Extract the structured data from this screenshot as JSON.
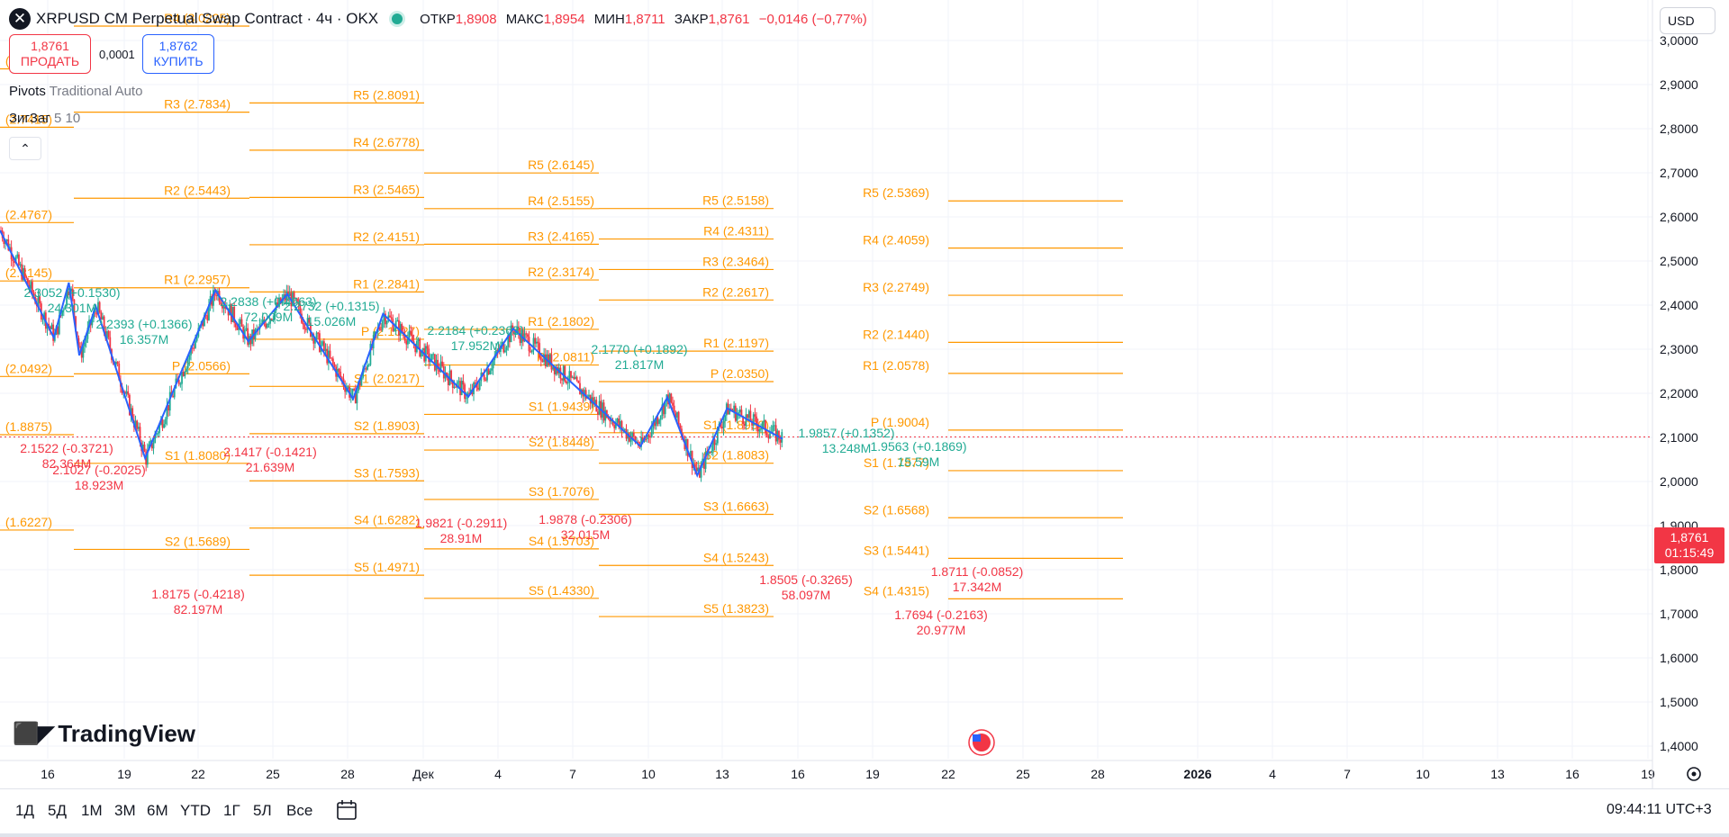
{
  "header": {
    "title": "XRPUSD CM Perpetual Swap Contract · 4ч · OKX",
    "ohlc": [
      {
        "k": "ОТКР",
        "v": "1,8908"
      },
      {
        "k": "МАКС",
        "v": "1,8954"
      },
      {
        "k": "МИН",
        "v": "1,8711"
      },
      {
        "k": "ЗАКР",
        "v": "1,8761"
      }
    ],
    "change": "−0,0146 (−0,77%)"
  },
  "trade": {
    "sell_price": "1,8761",
    "sell_label": "ПРОДАТЬ",
    "spread": "0,0001",
    "buy_price": "1,8762",
    "buy_label": "КУПИТЬ"
  },
  "indicators": [
    {
      "name": "Pivots",
      "params": "Traditional Auto"
    },
    {
      "name": "ЗигЗаг",
      "params": "5 10"
    }
  ],
  "currency": "USD",
  "last_price": {
    "value": "1,8761",
    "countdown": "01:15:49"
  },
  "logo_text": "TradingView",
  "ranges": [
    "1Д",
    "5Д",
    "1М",
    "3М",
    "6М",
    "YTD",
    "1Г",
    "5Л",
    "Все"
  ],
  "clock": "09:44:11 UTC+3",
  "colors": {
    "up": "#22ab94",
    "down": "#f23645",
    "pivot": "#ff9800",
    "zigzag": "#2962ff",
    "grid": "#f0f3fa"
  },
  "chart_data": {
    "type": "candlestick",
    "y_axis": {
      "ticks": [
        "3,0000",
        "2,9000",
        "2,8000",
        "2,7000",
        "2,6000",
        "2,5000",
        "2,4000",
        "2,3000",
        "2,2000",
        "2,1000",
        "2,0000",
        "1,9000",
        "1,8000",
        "1,7000",
        "1,6000",
        "1,5000",
        "1,4000"
      ],
      "range": [
        1.38,
        3.02
      ]
    },
    "x_axis": {
      "ticks": [
        "16",
        "19",
        "22",
        "25",
        "28",
        "Дек",
        "4",
        "7",
        "10",
        "13",
        "16",
        "19",
        "22",
        "25",
        "28",
        "2026",
        "4",
        "7",
        "10",
        "13",
        "16",
        "19"
      ]
    },
    "pivot_labels": [
      "R4 (3.0225)",
      "(2.9037)",
      "R3 (2.7834)",
      "(2.7415)",
      "R2 (2.5443)",
      "(2.4767)",
      "R1 (2.2957)",
      "(2.3145)",
      "P (2.0566)",
      "(2.0492)",
      "S1 (1.8080)",
      "(1.8875)",
      "S2 (1.5689)",
      "(1.6227)",
      "R5 (2.8091)",
      "R4 (2.6778)",
      "R3 (2.5465)",
      "R2 (2.4151)",
      "R1 (2.2841)",
      "P (2.1527)",
      "S1 (2.0217)",
      "S2 (1.8903)",
      "S3 (1.7593)",
      "S4 (1.6282)",
      "S5 (1.4971)",
      "R5 (2.6145)",
      "R4 (2.5155)",
      "R3 (2.4165)",
      "R2 (2.3174)",
      "R1 (2.1802)",
      "P (2.0811)",
      "S1 (1.9439)",
      "S2 (1.8448)",
      "S3 (1.7076)",
      "S4 (1.5703)",
      "S5 (1.4330)",
      "R5 (2.5158)",
      "R4 (2.4311)",
      "R3 (2.3464)",
      "R2 (2.2617)",
      "R1 (2.1197)",
      "P (2.0350)",
      "S1 (1.8930)",
      "S2 (1.8083)",
      "S3 (1.6663)",
      "S4 (1.5243)",
      "S5 (1.3823)",
      "R5 (2.5369)",
      "R4 (2.4059)",
      "R3 (2.2749)",
      "R2 (2.1440)",
      "R1 (2.0578)",
      "P (1.9004)",
      "S1 (1.7877)",
      "S2 (1.6568)",
      "S3 (1.5441)",
      "S4 (1.4315)"
    ],
    "zigzag_labels": [
      {
        "price": "2.3052 (+0.1530)",
        "vol": "24.301M",
        "dir": "up"
      },
      {
        "price": "2.2393 (+0.1366)",
        "vol": "16.357M",
        "dir": "up"
      },
      {
        "price": "2.2838 (+0.4663)",
        "vol": "72.009M",
        "dir": "up"
      },
      {
        "price": "2.2732 (+0.1315)",
        "vol": "15.026M",
        "dir": "up"
      },
      {
        "price": "2.2184 (+0.2363)",
        "vol": "17.952M",
        "dir": "up"
      },
      {
        "price": "2.1770 (+0.1892)",
        "vol": "21.817M",
        "dir": "up"
      },
      {
        "price": "1.9857 (+0.1352)",
        "vol": "13.248M",
        "dir": "up"
      },
      {
        "price": "1.9563 (+0.1869)",
        "vol": "15.59M",
        "dir": "up"
      },
      {
        "price": "2.1522 (-0.3721)",
        "vol": "82.364M",
        "dir": "down"
      },
      {
        "price": "2.1027 (-0.2025)",
        "vol": "18.923M",
        "dir": "down"
      },
      {
        "price": "2.1417 (-0.1421)",
        "vol": "21.639M",
        "dir": "down"
      },
      {
        "price": "1.8175 (-0.4218)",
        "vol": "82.197M",
        "dir": "down"
      },
      {
        "price": "1.9821 (-0.2911)",
        "vol": "28.91M",
        "dir": "down"
      },
      {
        "price": "1.9878 (-0.2306)",
        "vol": "32.015M",
        "dir": "down"
      },
      {
        "price": "1.8505 (-0.3265)",
        "vol": "58.097M",
        "dir": "down"
      },
      {
        "price": "1.7694 (-0.2163)",
        "vol": "20.977M",
        "dir": "down"
      },
      {
        "price": "1.8711 (-0.0852)",
        "vol": "17.342M",
        "dir": "down"
      }
    ],
    "zigzag_points": [
      {
        "bar": 0,
        "price": 2.45
      },
      {
        "bar": 36,
        "price": 2.152
      },
      {
        "bar": 46,
        "price": 2.305
      },
      {
        "bar": 53,
        "price": 2.103
      },
      {
        "bar": 64,
        "price": 2.239
      },
      {
        "bar": 97,
        "price": 1.8175
      },
      {
        "bar": 144,
        "price": 2.284
      },
      {
        "bar": 166,
        "price": 2.142
      },
      {
        "bar": 192,
        "price": 2.273
      },
      {
        "bar": 236,
        "price": 1.982
      },
      {
        "bar": 256,
        "price": 2.218
      },
      {
        "bar": 313,
        "price": 1.988
      },
      {
        "bar": 343,
        "price": 2.177
      },
      {
        "bar": 428,
        "price": 1.8505
      },
      {
        "bar": 446,
        "price": 1.986
      },
      {
        "bar": 466,
        "price": 1.7694
      },
      {
        "bar": 486,
        "price": 1.956
      },
      {
        "bar": 523,
        "price": 1.871
      }
    ]
  }
}
